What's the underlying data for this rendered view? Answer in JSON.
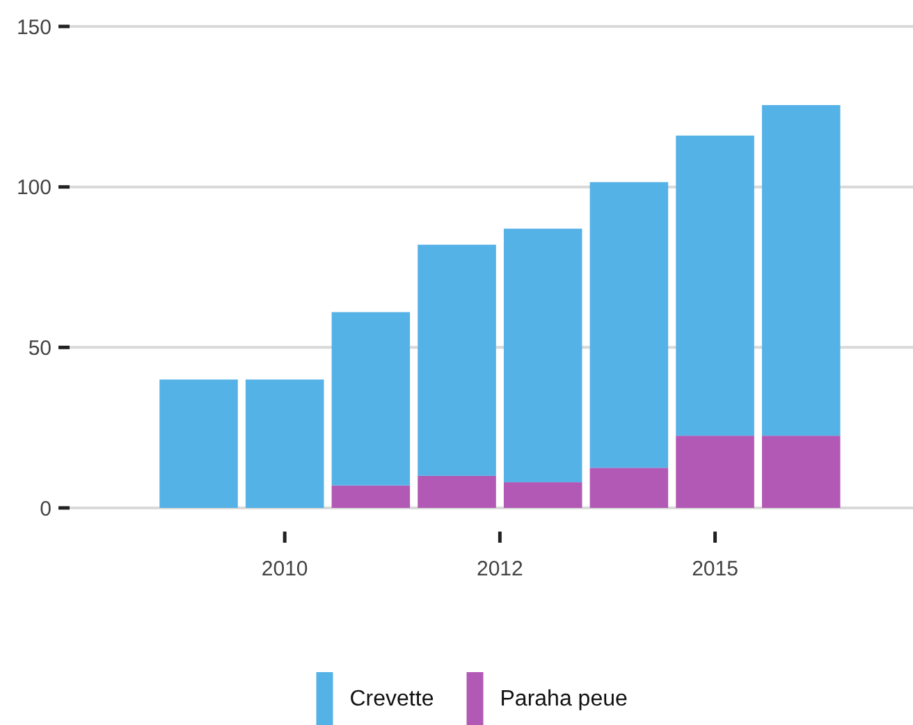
{
  "chart_data": {
    "type": "bar",
    "stacked": true,
    "x": [
      2009,
      2010,
      2011,
      2012,
      2013,
      2014,
      2015,
      2016
    ],
    "series": [
      {
        "name": "Paraha peue",
        "color": "#b159b5",
        "values": [
          0,
          0,
          7,
          10,
          8,
          12.5,
          22.5,
          22.5
        ]
      },
      {
        "name": "Crevette",
        "color": "#55b2e6",
        "values": [
          40,
          40,
          54,
          72,
          79,
          89,
          93.5,
          103
        ]
      }
    ],
    "xlim": [
      2007.5,
      2017.3
    ],
    "xticks": [
      2010,
      {
        "value": 2012.5,
        "label": "2012"
      },
      2015
    ],
    "ylim": [
      0,
      150
    ],
    "yticks": [
      0,
      50,
      100,
      150
    ],
    "grid": "y",
    "legend": "bottom"
  }
}
